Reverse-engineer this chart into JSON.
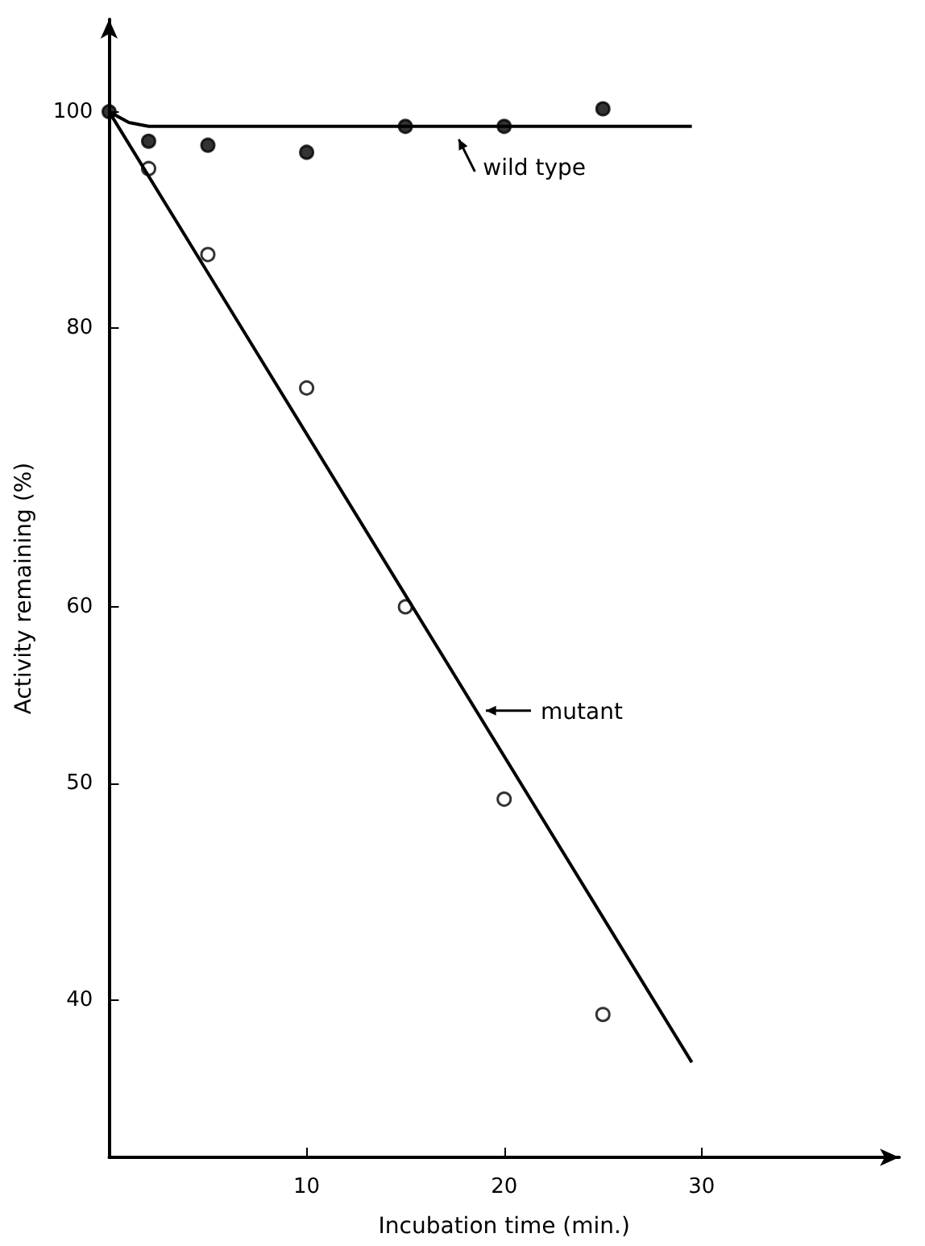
{
  "chart_data": {
    "type": "scatter",
    "xlabel": "Incubation time (min.)",
    "ylabel": "Activity remaining (%)",
    "log": "y",
    "xlim": [
      0,
      40
    ],
    "xticks": [
      10,
      20,
      30
    ],
    "ylim": [
      34,
      110
    ],
    "yticks": [
      40,
      50,
      60,
      80,
      100
    ],
    "grid": false,
    "legend": "right",
    "series": [
      {
        "marker": "circle",
        "color": "#000000",
        "x": [
          0,
          2,
          5,
          10,
          15,
          20,
          25
        ],
        "values": [
          100,
          97.0,
          96.6,
          95.9,
          98.5,
          98.5,
          100.3
        ]
      },
      {
        "marker": "circle",
        "color": "#ffffff",
        "x": [
          2,
          5,
          10,
          15,
          20,
          25
        ],
        "values": [
          94.3,
          86.3,
          75.2,
          60,
          49.2,
          39.4
        ]
      },
      {
        "type": "line",
        "name": "wild type",
        "marker": "none",
        "color": "#000000",
        "x": [
          0,
          1,
          2,
          3,
          29.5
        ],
        "values": [
          100,
          98.9,
          98.5,
          98.5,
          98.5
        ]
      },
      {
        "type": "line",
        "name": "mutant",
        "marker": "none",
        "color": "#000000",
        "x": [
          0,
          29.5
        ],
        "values": [
          100,
          37.5
        ]
      }
    ]
  }
}
